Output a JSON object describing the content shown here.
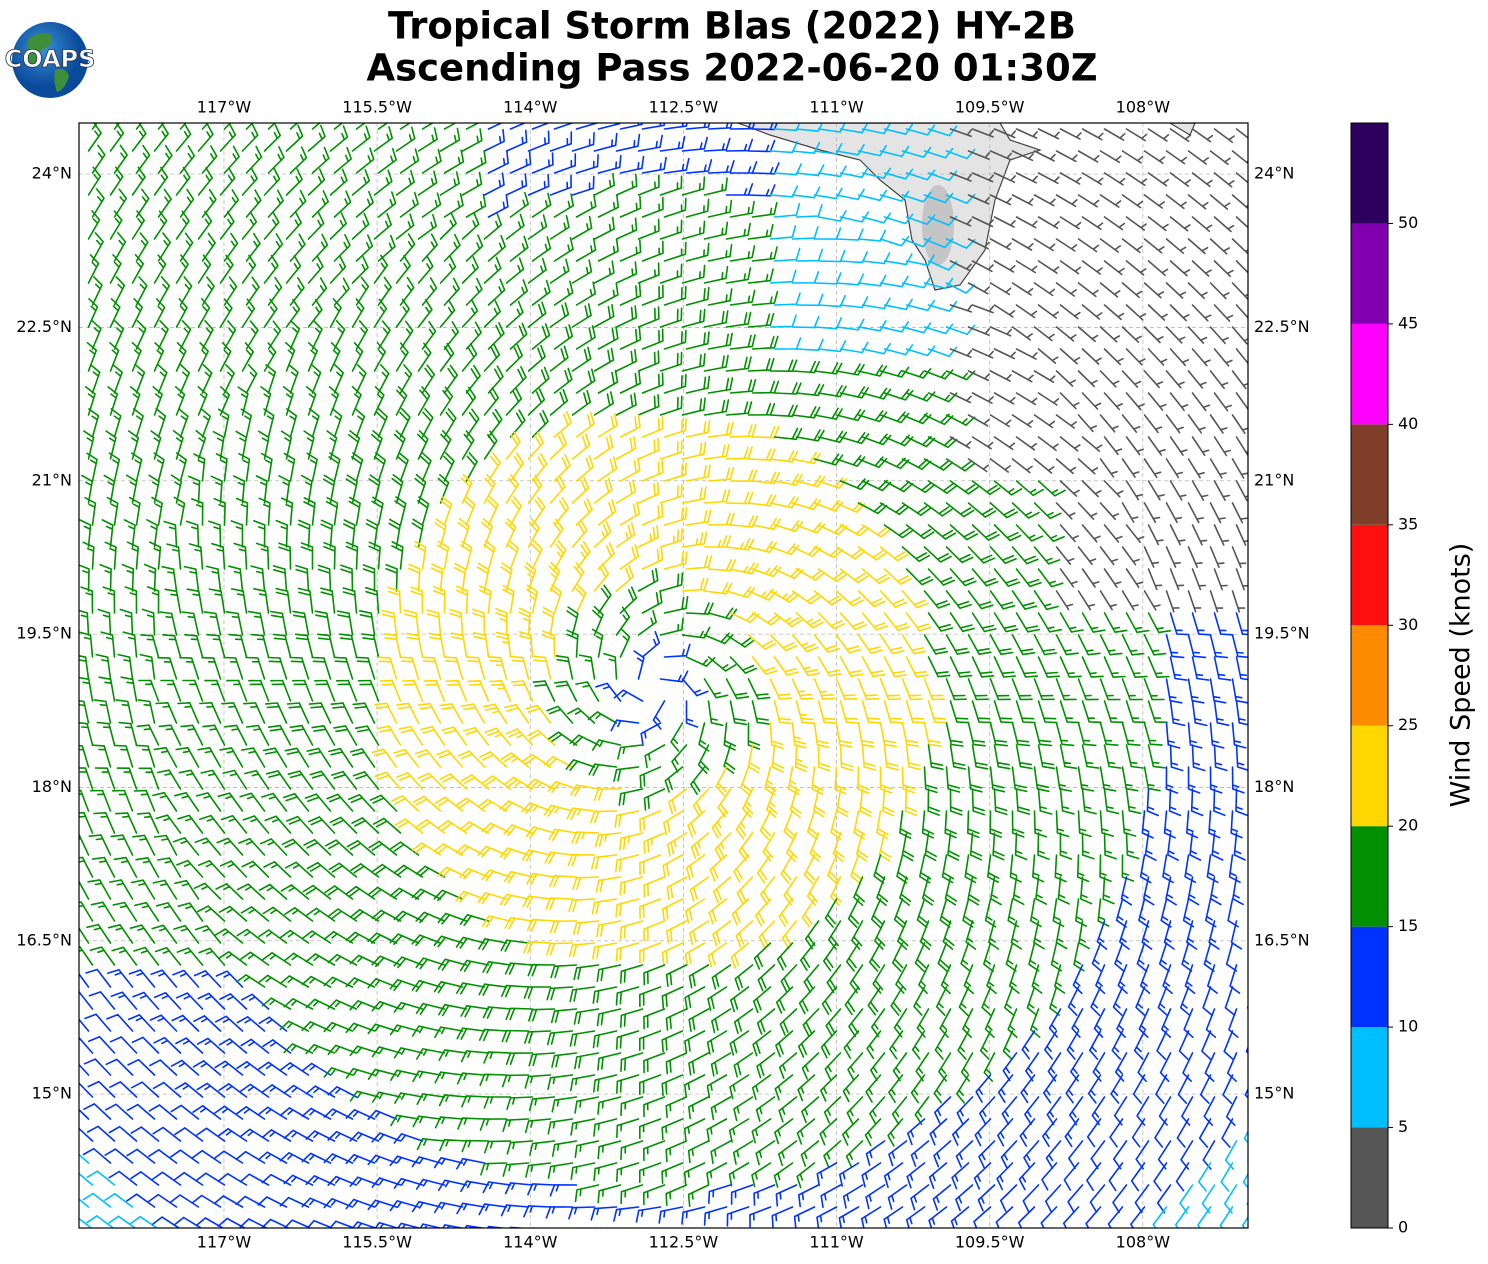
{
  "chart_data": {
    "type": "barb-map",
    "title": "Tropical Storm Blas (2022) HY-2B",
    "subtitle": "Ascending Pass 2022-06-20 01:30Z",
    "logo": "COAPS",
    "xlim": [
      -118.42,
      -106.97
    ],
    "xticks": [
      {
        "value": -117,
        "label": "117°W"
      },
      {
        "value": -115.5,
        "label": "115.5°W"
      },
      {
        "value": -114,
        "label": "114°W"
      },
      {
        "value": -112.5,
        "label": "112.5°W"
      },
      {
        "value": -111,
        "label": "111°W"
      },
      {
        "value": -109.5,
        "label": "109.5°W"
      },
      {
        "value": -108,
        "label": "108°W"
      }
    ],
    "ylim": [
      13.69,
      24.5
    ],
    "yticks": [
      {
        "value": 15,
        "label": "15°N"
      },
      {
        "value": 16.5,
        "label": "16.5°N"
      },
      {
        "value": 18,
        "label": "18°N"
      },
      {
        "value": 19.5,
        "label": "19.5°N"
      },
      {
        "value": 21,
        "label": "21°N"
      },
      {
        "value": 22.5,
        "label": "22.5°N"
      },
      {
        "value": 24,
        "label": "24°N"
      }
    ],
    "grid": true,
    "colorbar": {
      "label": "Wind Speed (knots)",
      "lim": [
        0,
        55
      ],
      "ticks": [
        0,
        5,
        10,
        15,
        20,
        25,
        30,
        35,
        40,
        45,
        50
      ],
      "colors": [
        "#555555",
        "#00bfff",
        "#0033ff",
        "#009000",
        "#ffd700",
        "#ff8c00",
        "#ff1010",
        "#7f3f2a",
        "#ff00ff",
        "#8000b0",
        "#2d0060"
      ]
    }
  }
}
